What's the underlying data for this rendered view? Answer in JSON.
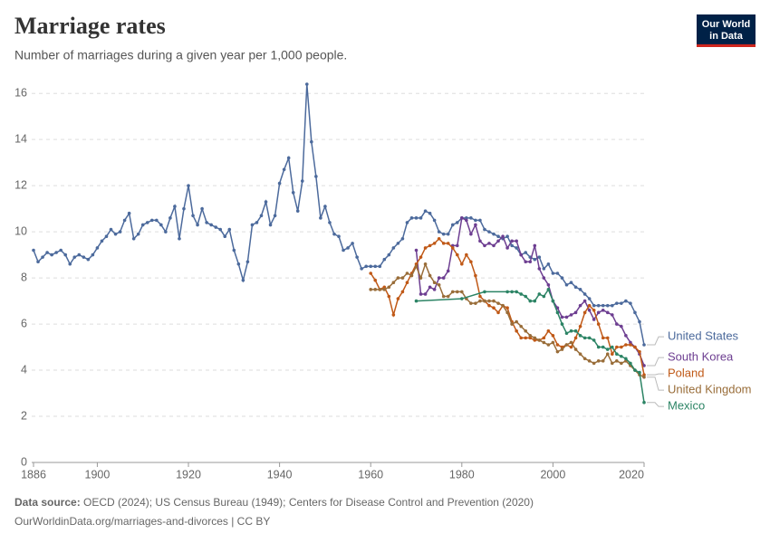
{
  "chart_data": {
    "type": "line",
    "title": "Marriage rates",
    "subtitle": "Number of marriages during a given year per 1,000 people.",
    "xlim": [
      1886,
      2020
    ],
    "xticks": [
      1886,
      1900,
      1920,
      1940,
      1960,
      1980,
      2000,
      2020
    ],
    "ylim": [
      0,
      16.4
    ],
    "yticks": [
      0,
      2,
      4,
      6,
      8,
      10,
      12,
      14,
      16
    ],
    "grid": true,
    "series": [
      {
        "name": "United States",
        "color": "#4c6a9c",
        "x": [
          1886,
          1887,
          1888,
          1889,
          1890,
          1891,
          1892,
          1893,
          1894,
          1895,
          1896,
          1897,
          1898,
          1899,
          1900,
          1901,
          1902,
          1903,
          1904,
          1905,
          1906,
          1907,
          1908,
          1909,
          1910,
          1911,
          1912,
          1913,
          1914,
          1915,
          1916,
          1917,
          1918,
          1919,
          1920,
          1921,
          1922,
          1923,
          1924,
          1925,
          1926,
          1927,
          1928,
          1929,
          1930,
          1931,
          1932,
          1933,
          1934,
          1935,
          1936,
          1937,
          1938,
          1939,
          1940,
          1941,
          1942,
          1943,
          1944,
          1945,
          1946,
          1947,
          1948,
          1949,
          1950,
          1951,
          1952,
          1953,
          1954,
          1955,
          1956,
          1957,
          1958,
          1959,
          1960,
          1961,
          1962,
          1963,
          1964,
          1965,
          1966,
          1967,
          1968,
          1969,
          1970,
          1971,
          1972,
          1973,
          1974,
          1975,
          1976,
          1977,
          1978,
          1979,
          1980,
          1981,
          1982,
          1983,
          1984,
          1985,
          1986,
          1987,
          1988,
          1989,
          1990,
          1991,
          1992,
          1993,
          1994,
          1995,
          1996,
          1997,
          1998,
          1999,
          2000,
          2001,
          2002,
          2003,
          2004,
          2005,
          2006,
          2007,
          2008,
          2009,
          2010,
          2011,
          2012,
          2013,
          2014,
          2015,
          2016,
          2017,
          2018,
          2019,
          2020
        ],
        "values": [
          9.2,
          8.7,
          8.9,
          9.1,
          9.0,
          9.1,
          9.2,
          9.0,
          8.6,
          8.9,
          9.0,
          8.9,
          8.8,
          9.0,
          9.3,
          9.6,
          9.8,
          10.1,
          9.9,
          10.0,
          10.5,
          10.8,
          9.7,
          9.9,
          10.3,
          10.4,
          10.5,
          10.5,
          10.3,
          10.0,
          10.6,
          11.1,
          9.7,
          11.0,
          12.0,
          10.7,
          10.3,
          11.0,
          10.4,
          10.3,
          10.2,
          10.1,
          9.8,
          10.1,
          9.2,
          8.6,
          7.9,
          8.7,
          10.3,
          10.4,
          10.7,
          11.3,
          10.3,
          10.7,
          12.1,
          12.7,
          13.2,
          11.7,
          10.9,
          12.2,
          16.4,
          13.9,
          12.4,
          10.6,
          11.1,
          10.4,
          9.9,
          9.8,
          9.2,
          9.3,
          9.5,
          8.9,
          8.4,
          8.5,
          8.5,
          8.5,
          8.5,
          8.8,
          9.0,
          9.3,
          9.5,
          9.7,
          10.4,
          10.6,
          10.6,
          10.6,
          10.9,
          10.8,
          10.5,
          10.0,
          9.9,
          9.9,
          10.3,
          10.4,
          10.6,
          10.6,
          10.6,
          10.5,
          10.5,
          10.1,
          10.0,
          9.9,
          9.8,
          9.7,
          9.8,
          9.4,
          9.3,
          9.0,
          9.1,
          8.9,
          8.8,
          8.9,
          8.4,
          8.6,
          8.2,
          8.2,
          8.0,
          7.7,
          7.8,
          7.6,
          7.5,
          7.3,
          7.1,
          6.8,
          6.8,
          6.8,
          6.8,
          6.8,
          6.9,
          6.9,
          7.0,
          6.9,
          6.5,
          6.1,
          5.1
        ]
      },
      {
        "name": "South Korea",
        "color": "#6d3e91",
        "x": [
          1970,
          1971,
          1972,
          1973,
          1974,
          1975,
          1976,
          1977,
          1978,
          1979,
          1980,
          1981,
          1982,
          1983,
          1984,
          1985,
          1986,
          1987,
          1988,
          1989,
          1990,
          1991,
          1992,
          1993,
          1994,
          1995,
          1996,
          1997,
          1998,
          1999,
          2000,
          2001,
          2002,
          2003,
          2004,
          2005,
          2006,
          2007,
          2008,
          2009,
          2010,
          2011,
          2012,
          2013,
          2014,
          2015,
          2016,
          2017,
          2018,
          2019,
          2020
        ],
        "values": [
          9.2,
          7.3,
          7.3,
          7.6,
          7.5,
          8.0,
          8.0,
          8.3,
          9.4,
          9.4,
          10.6,
          10.5,
          9.9,
          10.3,
          9.6,
          9.4,
          9.5,
          9.4,
          9.6,
          9.8,
          9.3,
          9.6,
          9.6,
          9.0,
          8.7,
          8.7,
          9.4,
          8.4,
          8.0,
          7.7,
          7.0,
          6.7,
          6.3,
          6.3,
          6.4,
          6.5,
          6.8,
          7.0,
          6.6,
          6.2,
          6.5,
          6.6,
          6.5,
          6.4,
          6.0,
          5.9,
          5.5,
          5.2,
          5.0,
          4.7,
          4.2
        ]
      },
      {
        "name": "Poland",
        "color": "#c05917",
        "x": [
          1960,
          1961,
          1962,
          1963,
          1964,
          1965,
          1966,
          1967,
          1968,
          1969,
          1970,
          1971,
          1972,
          1973,
          1974,
          1975,
          1976,
          1977,
          1978,
          1979,
          1980,
          1981,
          1982,
          1983,
          1984,
          1985,
          1986,
          1987,
          1988,
          1989,
          1990,
          1991,
          1992,
          1993,
          1994,
          1995,
          1996,
          1997,
          1998,
          1999,
          2000,
          2001,
          2002,
          2003,
          2004,
          2005,
          2006,
          2007,
          2008,
          2009,
          2010,
          2011,
          2012,
          2013,
          2014,
          2015,
          2016,
          2017,
          2018,
          2019,
          2020
        ],
        "values": [
          8.2,
          7.9,
          7.5,
          7.6,
          7.2,
          6.4,
          7.1,
          7.4,
          7.8,
          8.2,
          8.6,
          8.9,
          9.3,
          9.4,
          9.5,
          9.7,
          9.5,
          9.5,
          9.3,
          9.0,
          8.6,
          9.0,
          8.7,
          8.1,
          7.2,
          7.0,
          6.8,
          6.7,
          6.5,
          6.8,
          6.7,
          6.1,
          5.7,
          5.4,
          5.4,
          5.4,
          5.3,
          5.3,
          5.4,
          5.7,
          5.5,
          5.1,
          5.0,
          5.1,
          5.0,
          5.4,
          5.9,
          6.5,
          6.8,
          6.6,
          6.0,
          5.4,
          5.4,
          4.7,
          5.0,
          5.0,
          5.1,
          5.1,
          5.0,
          4.8,
          3.8
        ]
      },
      {
        "name": "United Kingdom",
        "color": "#996d39",
        "x": [
          1960,
          1961,
          1962,
          1963,
          1964,
          1965,
          1966,
          1967,
          1968,
          1969,
          1970,
          1971,
          1972,
          1973,
          1974,
          1975,
          1976,
          1977,
          1978,
          1979,
          1980,
          1981,
          1982,
          1983,
          1984,
          1985,
          1986,
          1987,
          1988,
          1989,
          1990,
          1991,
          1992,
          1993,
          1994,
          1995,
          1996,
          1997,
          1998,
          1999,
          2000,
          2001,
          2002,
          2003,
          2004,
          2005,
          2006,
          2007,
          2008,
          2009,
          2010,
          2011,
          2012,
          2013,
          2014,
          2015,
          2016,
          2017,
          2018,
          2019,
          2020
        ],
        "values": [
          7.5,
          7.5,
          7.5,
          7.5,
          7.6,
          7.8,
          8.0,
          8.0,
          8.2,
          8.1,
          8.5,
          8.0,
          8.6,
          8.1,
          7.8,
          7.7,
          7.2,
          7.2,
          7.4,
          7.4,
          7.4,
          7.1,
          6.9,
          6.9,
          7.0,
          7.0,
          7.0,
          7.0,
          6.9,
          6.8,
          6.5,
          6.0,
          6.1,
          5.9,
          5.7,
          5.5,
          5.4,
          5.3,
          5.2,
          5.1,
          5.2,
          4.8,
          4.9,
          5.1,
          5.2,
          4.9,
          4.7,
          4.5,
          4.4,
          4.3,
          4.4,
          4.4,
          4.7,
          4.3,
          4.4,
          4.3,
          4.4,
          4.2,
          4.0,
          3.8,
          3.7
        ]
      },
      {
        "name": "Mexico",
        "color": "#2c8465",
        "x": [
          1970,
          1980,
          1985,
          1990,
          1991,
          1992,
          1993,
          1994,
          1995,
          1996,
          1997,
          1998,
          1999,
          2000,
          2001,
          2002,
          2003,
          2004,
          2005,
          2006,
          2007,
          2008,
          2009,
          2010,
          2011,
          2012,
          2013,
          2014,
          2015,
          2016,
          2017,
          2018,
          2019,
          2020
        ],
        "values": [
          7.0,
          7.1,
          7.4,
          7.4,
          7.4,
          7.4,
          7.3,
          7.2,
          7.0,
          7.0,
          7.3,
          7.2,
          7.5,
          7.0,
          6.5,
          6.0,
          5.6,
          5.7,
          5.7,
          5.5,
          5.4,
          5.4,
          5.3,
          5.0,
          5.0,
          4.9,
          5.0,
          4.7,
          4.6,
          4.5,
          4.3,
          4.0,
          3.9,
          2.6
        ]
      }
    ]
  },
  "logo": [
    "Our World",
    "in Data"
  ],
  "source_label": "Data source:",
  "source": "OECD (2024); US Census Bureau (1949); Centers for Disease Control and Prevention (2020)",
  "footer_url": "OurWorldinData.org/marriages-and-divorces | CC BY"
}
